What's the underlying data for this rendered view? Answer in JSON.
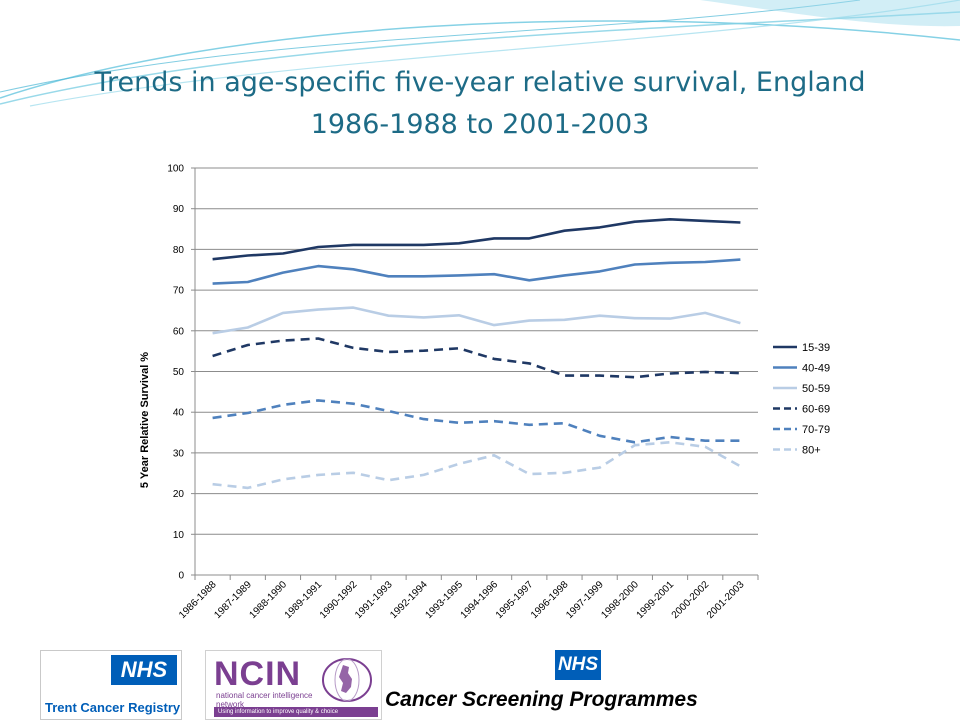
{
  "slide": {
    "title_line1": "Trends in age-specific five-year relative survival, England",
    "title_line2": "1986-1988 to 2001-2003"
  },
  "logos": {
    "trent": {
      "badge": "NHS",
      "label": "Trent Cancer Registry"
    },
    "ncin": {
      "name": "NCIN",
      "subtitle": "national cancer intelligence network",
      "strap": "Using information to improve quality & choice"
    },
    "screening": {
      "badge": "NHS",
      "label": "Cancer Screening Programmes"
    }
  },
  "colors": {
    "title": "#1d6b86",
    "s15_39": "#1f3864",
    "s40_49": "#4f81bd",
    "s50_59": "#b9cde5"
  },
  "chart_data": {
    "type": "line",
    "title": "",
    "xlabel": "",
    "ylabel": "5 Year Relative Survival %",
    "ylim": [
      0,
      100
    ],
    "yticks": [
      0,
      10,
      20,
      30,
      40,
      50,
      60,
      70,
      80,
      90,
      100
    ],
    "grid": true,
    "legend_position": "right",
    "categories": [
      "1986-1988",
      "1987-1989",
      "1988-1990",
      "1989-1991",
      "1990-1992",
      "1991-1993",
      "1992-1994",
      "1993-1995",
      "1994-1996",
      "1995-1997",
      "1996-1998",
      "1997-1999",
      "1998-2000",
      "1999-2001",
      "2000-2002",
      "2001-2003"
    ],
    "series": [
      {
        "name": "15-39",
        "color": "#1f3864",
        "dash": "solid",
        "values": [
          77.6,
          78.5,
          79.0,
          80.6,
          81.1,
          81.1,
          81.1,
          81.5,
          82.7,
          82.7,
          84.6,
          85.4,
          86.8,
          87.4,
          87.0,
          86.6
        ]
      },
      {
        "name": "40-49",
        "color": "#4f81bd",
        "dash": "solid",
        "values": [
          71.6,
          72.0,
          74.3,
          75.9,
          75.1,
          73.4,
          73.4,
          73.6,
          73.9,
          72.4,
          73.6,
          74.6,
          76.3,
          76.7,
          76.9,
          77.5
        ]
      },
      {
        "name": "50-59",
        "color": "#b9cde5",
        "dash": "solid",
        "values": [
          59.4,
          60.8,
          64.4,
          65.2,
          65.7,
          63.7,
          63.3,
          63.8,
          61.4,
          62.5,
          62.7,
          63.7,
          63.1,
          63.0,
          64.4,
          61.9
        ]
      },
      {
        "name": "60-69",
        "color": "#1f3864",
        "dash": "dashed",
        "values": [
          53.8,
          56.5,
          57.6,
          58.1,
          55.8,
          54.8,
          55.1,
          55.7,
          53.1,
          52.0,
          49.0,
          49.0,
          48.6,
          49.5,
          49.9,
          49.6
        ]
      },
      {
        "name": "70-79",
        "color": "#4f81bd",
        "dash": "dashed",
        "values": [
          38.6,
          39.8,
          41.8,
          42.9,
          42.1,
          40.3,
          38.3,
          37.4,
          37.8,
          36.9,
          37.3,
          34.2,
          32.6,
          33.9,
          33.0,
          33.0
        ]
      },
      {
        "name": "80+",
        "color": "#b9cde5",
        "dash": "dashed",
        "values": [
          22.3,
          21.4,
          23.5,
          24.6,
          25.1,
          23.3,
          24.6,
          27.3,
          29.4,
          24.8,
          25.1,
          26.4,
          31.9,
          32.6,
          31.5,
          26.7
        ]
      }
    ]
  }
}
